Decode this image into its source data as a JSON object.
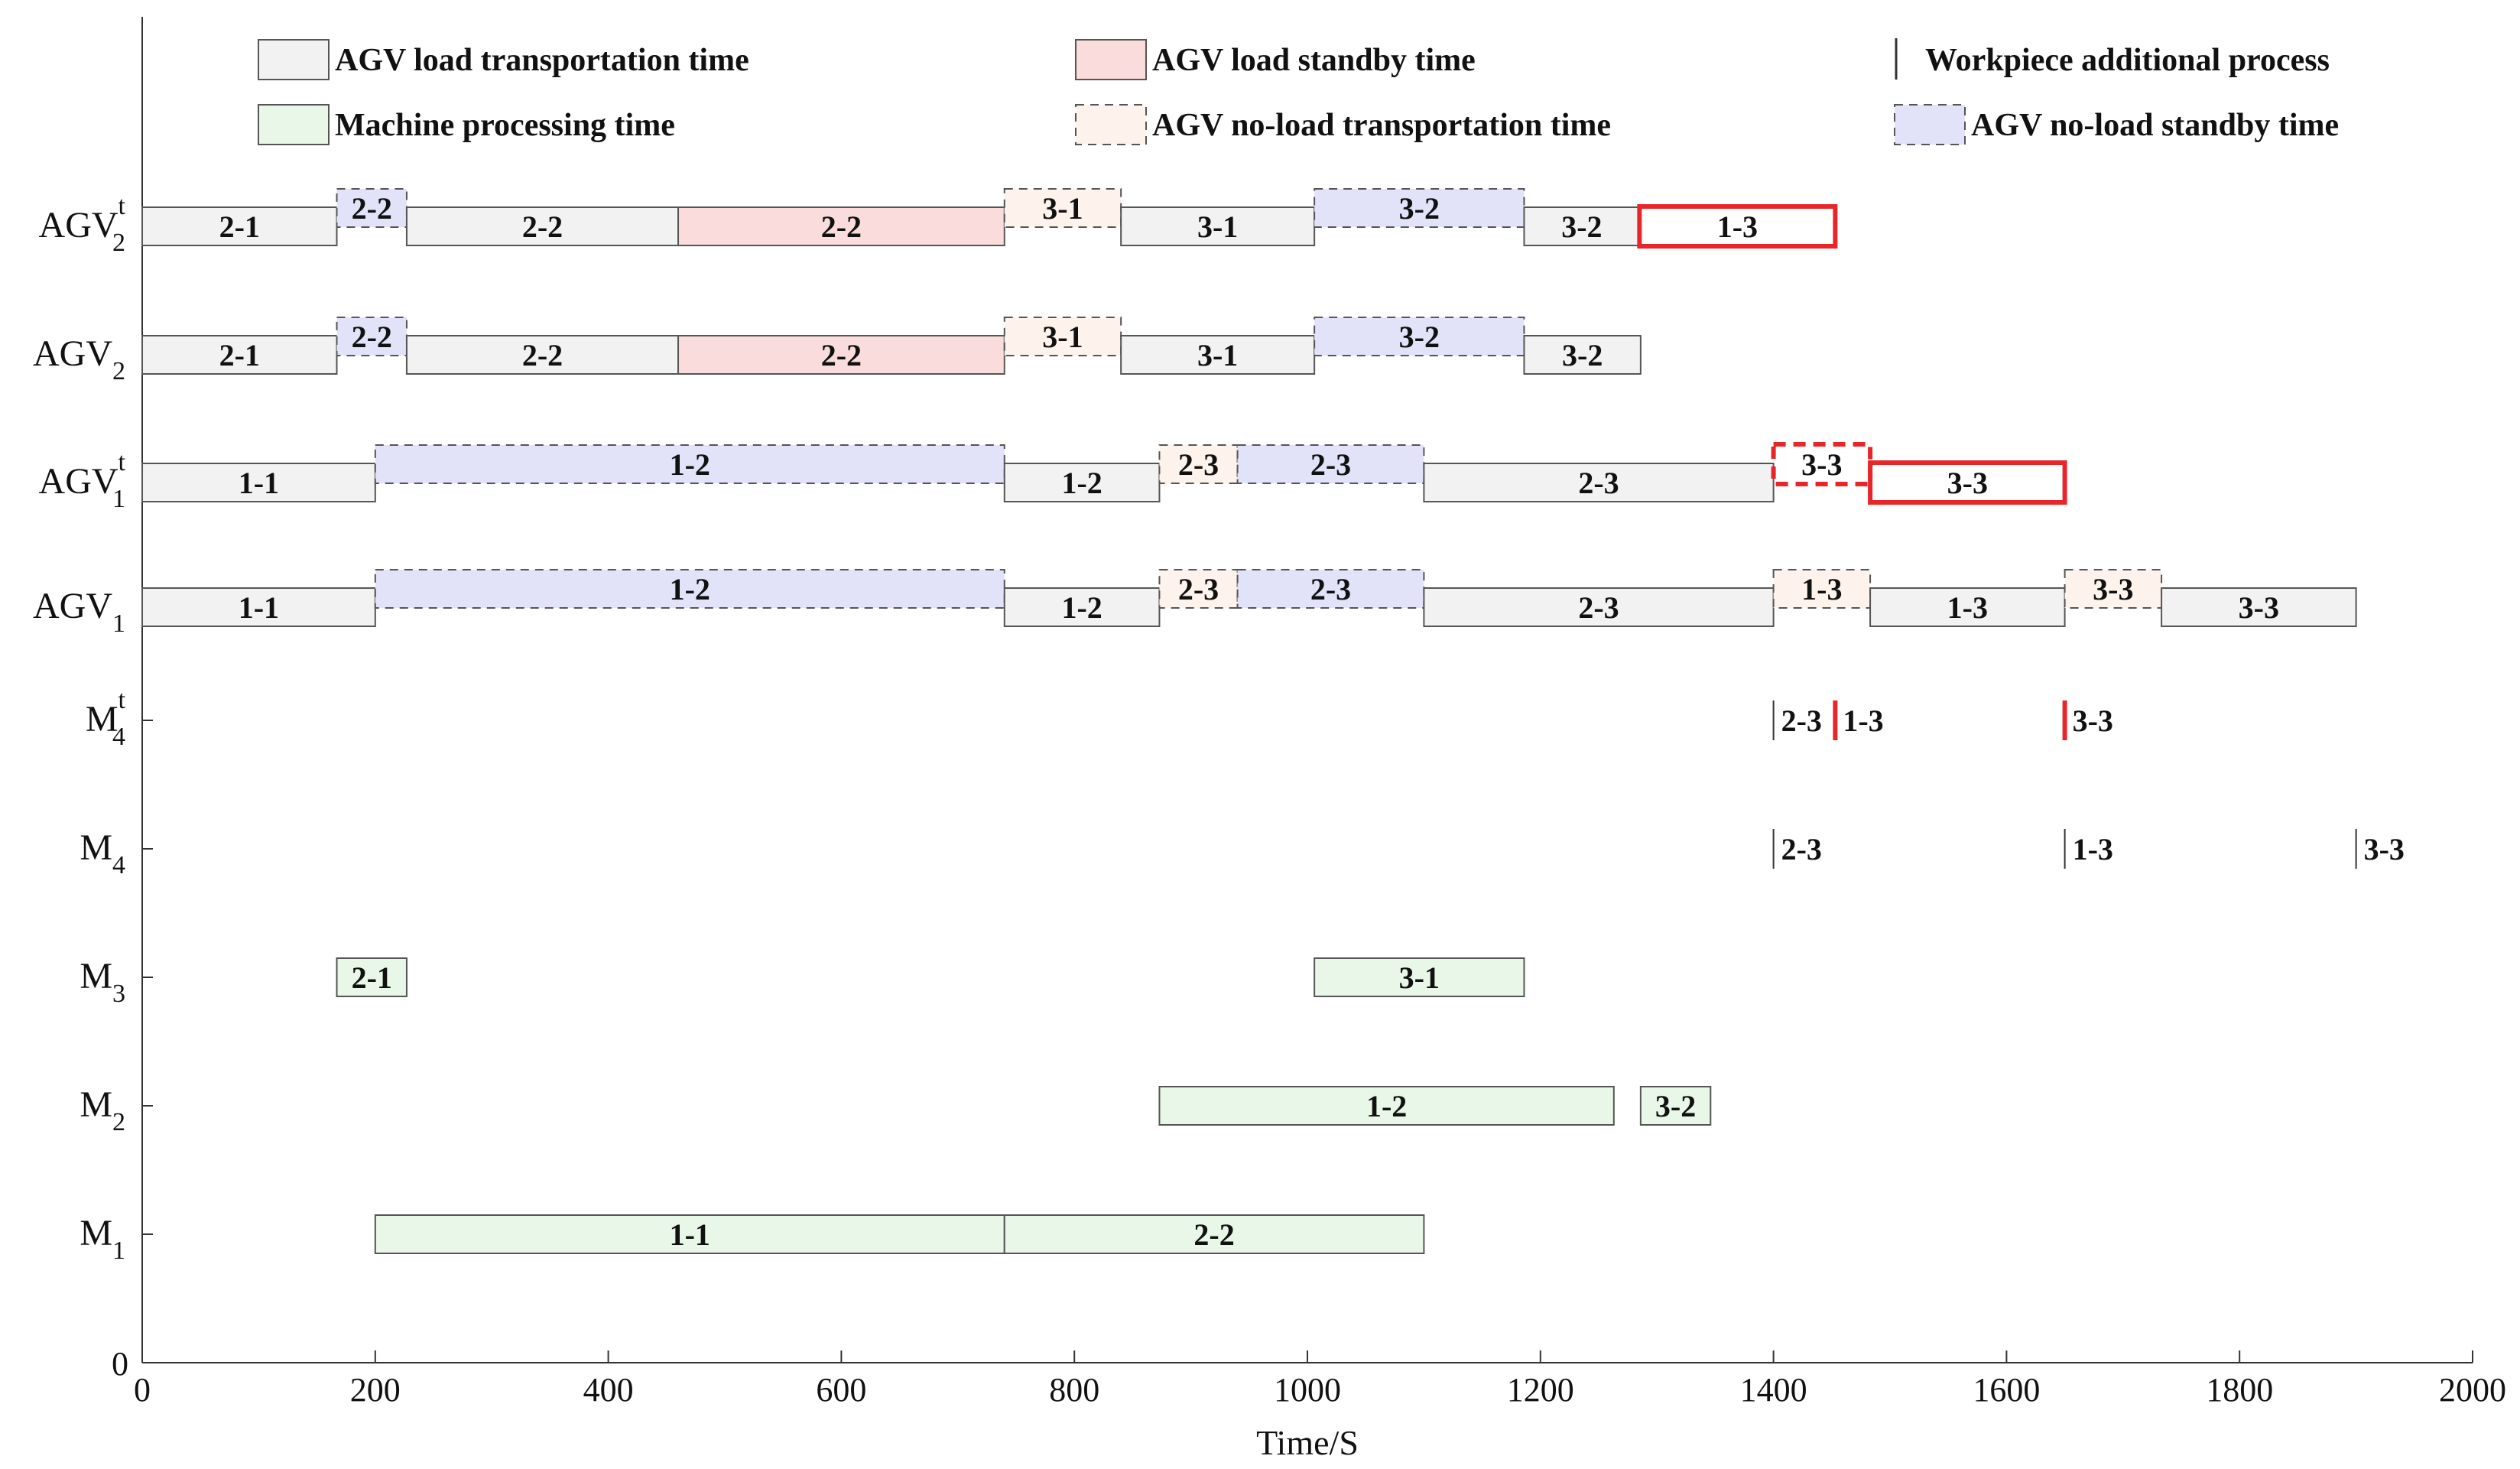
{
  "chart_data": {
    "type": "gantt",
    "title": "",
    "xlabel": "Time/S",
    "ylabel": "",
    "xlim": [
      0,
      2000
    ],
    "xticks": [
      0,
      200,
      400,
      600,
      800,
      1000,
      1200,
      1400,
      1600,
      1800,
      2000
    ],
    "ytick_zero_label": "0",
    "colors": {
      "load_transport": "#f2f2f2",
      "load_standby": "#fbdcdc",
      "machine_processing": "#e8f7e7",
      "noload_transport": "#fdf2ec",
      "noload_standby": "#e2e3f8",
      "highlight": "#e8262a",
      "edge": "#555555",
      "axis": "#333333"
    },
    "legend": [
      {
        "key": "load_transport",
        "label": "AGV load transportation time"
      },
      {
        "key": "load_standby",
        "label": "AGV load standby time"
      },
      {
        "key": "additional_process",
        "label": "Workpiece additional process"
      },
      {
        "key": "machine_processing",
        "label": "Machine processing time"
      },
      {
        "key": "noload_transport",
        "label": "AGV no-load transportation time"
      },
      {
        "key": "noload_standby",
        "label": "AGV no-load standby time"
      }
    ],
    "rows": [
      {
        "base": "AGV",
        "sup": "t",
        "sub": "2"
      },
      {
        "base": "AGV",
        "sup": "",
        "sub": "2"
      },
      {
        "base": "AGV",
        "sup": "t",
        "sub": "1"
      },
      {
        "base": "AGV",
        "sup": "",
        "sub": "1"
      },
      {
        "base": "M",
        "sup": "t",
        "sub": "4"
      },
      {
        "base": "M",
        "sup": "",
        "sub": "4"
      },
      {
        "base": "M",
        "sup": "",
        "sub": "3"
      },
      {
        "base": "M",
        "sup": "",
        "sub": "2"
      },
      {
        "base": "M",
        "sup": "",
        "sub": "1"
      }
    ],
    "tasks": [
      {
        "row": 0,
        "type": "load_transport",
        "start": 0,
        "end": 167,
        "label": "2-1"
      },
      {
        "row": 0,
        "type": "noload_standby",
        "start": 167,
        "end": 227,
        "label": "2-2"
      },
      {
        "row": 0,
        "type": "load_transport",
        "start": 227,
        "end": 460,
        "label": "2-2"
      },
      {
        "row": 0,
        "type": "load_standby",
        "start": 460,
        "end": 740,
        "label": "2-2"
      },
      {
        "row": 0,
        "type": "noload_transport",
        "start": 740,
        "end": 840,
        "label": "3-1"
      },
      {
        "row": 0,
        "type": "load_transport",
        "start": 840,
        "end": 1006,
        "label": "3-1"
      },
      {
        "row": 0,
        "type": "noload_standby",
        "start": 1006,
        "end": 1186,
        "label": "3-2"
      },
      {
        "row": 0,
        "type": "load_transport",
        "start": 1186,
        "end": 1285,
        "label": "3-2"
      },
      {
        "row": 0,
        "type": "highlight",
        "start": 1285,
        "end": 1453,
        "label": "1-3"
      },
      {
        "row": 1,
        "type": "load_transport",
        "start": 0,
        "end": 167,
        "label": "2-1"
      },
      {
        "row": 1,
        "type": "noload_standby",
        "start": 167,
        "end": 227,
        "label": "2-2"
      },
      {
        "row": 1,
        "type": "load_transport",
        "start": 227,
        "end": 460,
        "label": "2-2"
      },
      {
        "row": 1,
        "type": "load_standby",
        "start": 460,
        "end": 740,
        "label": "2-2"
      },
      {
        "row": 1,
        "type": "noload_transport",
        "start": 740,
        "end": 840,
        "label": "3-1"
      },
      {
        "row": 1,
        "type": "load_transport",
        "start": 840,
        "end": 1006,
        "label": "3-1"
      },
      {
        "row": 1,
        "type": "noload_standby",
        "start": 1006,
        "end": 1186,
        "label": "3-2"
      },
      {
        "row": 1,
        "type": "load_transport",
        "start": 1186,
        "end": 1286,
        "label": "3-2"
      },
      {
        "row": 2,
        "type": "load_transport",
        "start": 0,
        "end": 200,
        "label": "1-1"
      },
      {
        "row": 2,
        "type": "noload_standby",
        "start": 200,
        "end": 740,
        "label": "1-2"
      },
      {
        "row": 2,
        "type": "load_transport",
        "start": 740,
        "end": 873,
        "label": "1-2"
      },
      {
        "row": 2,
        "type": "noload_transport",
        "start": 873,
        "end": 940,
        "label": "2-3"
      },
      {
        "row": 2,
        "type": "noload_standby",
        "start": 940,
        "end": 1100,
        "label": "2-3"
      },
      {
        "row": 2,
        "type": "load_transport",
        "start": 1100,
        "end": 1400,
        "label": "2-3"
      },
      {
        "row": 2,
        "type": "highlight_dashed",
        "start": 1400,
        "end": 1483,
        "label": "3-3"
      },
      {
        "row": 2,
        "type": "highlight",
        "start": 1483,
        "end": 1650,
        "label": "3-3"
      },
      {
        "row": 3,
        "type": "load_transport",
        "start": 0,
        "end": 200,
        "label": "1-1"
      },
      {
        "row": 3,
        "type": "noload_standby",
        "start": 200,
        "end": 740,
        "label": "1-2"
      },
      {
        "row": 3,
        "type": "load_transport",
        "start": 740,
        "end": 873,
        "label": "1-2"
      },
      {
        "row": 3,
        "type": "noload_transport",
        "start": 873,
        "end": 940,
        "label": "2-3"
      },
      {
        "row": 3,
        "type": "noload_standby",
        "start": 940,
        "end": 1100,
        "label": "2-3"
      },
      {
        "row": 3,
        "type": "load_transport",
        "start": 1100,
        "end": 1400,
        "label": "2-3"
      },
      {
        "row": 3,
        "type": "noload_transport",
        "start": 1400,
        "end": 1483,
        "label": "1-3"
      },
      {
        "row": 3,
        "type": "load_transport",
        "start": 1483,
        "end": 1650,
        "label": "1-3"
      },
      {
        "row": 3,
        "type": "noload_transport",
        "start": 1650,
        "end": 1733,
        "label": "3-3"
      },
      {
        "row": 3,
        "type": "load_transport",
        "start": 1733,
        "end": 1900,
        "label": "3-3"
      },
      {
        "row": 6,
        "type": "machine_processing",
        "start": 167,
        "end": 227,
        "label": "2-1"
      },
      {
        "row": 6,
        "type": "machine_processing",
        "start": 1006,
        "end": 1186,
        "label": "3-1"
      },
      {
        "row": 7,
        "type": "machine_processing",
        "start": 873,
        "end": 1263,
        "label": "1-2"
      },
      {
        "row": 7,
        "type": "machine_processing",
        "start": 1286,
        "end": 1346,
        "label": "3-2"
      },
      {
        "row": 8,
        "type": "machine_processing",
        "start": 200,
        "end": 740,
        "label": "1-1"
      },
      {
        "row": 8,
        "type": "machine_processing",
        "start": 740,
        "end": 1100,
        "label": "2-2"
      }
    ],
    "markers": [
      {
        "row": 4,
        "t": 1400,
        "label": "2-3",
        "highlight": false
      },
      {
        "row": 4,
        "t": 1453,
        "label": "1-3",
        "highlight": true
      },
      {
        "row": 4,
        "t": 1650,
        "label": "3-3",
        "highlight": true
      },
      {
        "row": 5,
        "t": 1400,
        "label": "2-3",
        "highlight": false
      },
      {
        "row": 5,
        "t": 1650,
        "label": "1-3",
        "highlight": false
      },
      {
        "row": 5,
        "t": 1900,
        "label": "3-3",
        "highlight": false
      }
    ]
  }
}
